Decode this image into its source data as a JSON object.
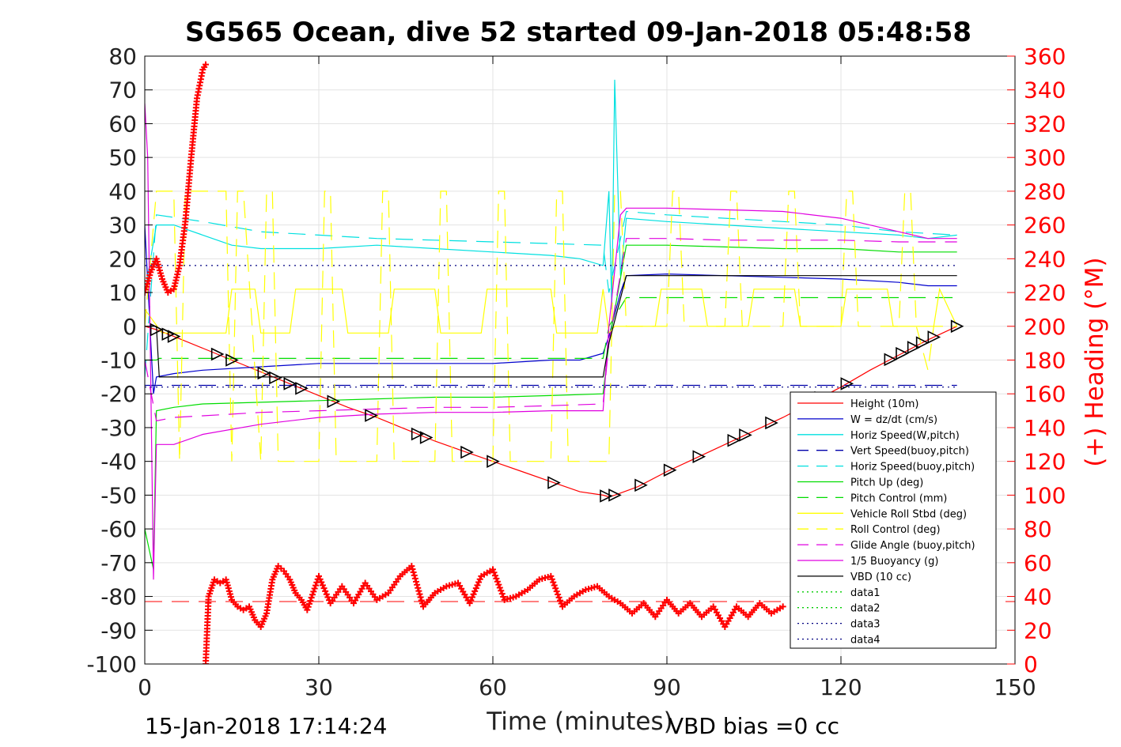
{
  "chart_data": {
    "type": "line",
    "title": "SG565 Ocean, dive 52 started 09-Jan-2018 05:48:58",
    "xlabel": "Time (minutes)",
    "ylabel_right": "(+) Heading (°M)",
    "xlim": [
      0,
      150
    ],
    "ylim": [
      -100,
      80
    ],
    "ylim_right": [
      0,
      360
    ],
    "xticks": [
      "0",
      "30",
      "60",
      "90",
      "120",
      "150"
    ],
    "yticks": [
      "80",
      "70",
      "60",
      "50",
      "40",
      "30",
      "20",
      "10",
      "0",
      "-10",
      "-20",
      "-30",
      "-40",
      "-50",
      "-60",
      "-70",
      "-80",
      "-90",
      "-100"
    ],
    "yticks_right": [
      "360",
      "340",
      "320",
      "300",
      "280",
      "260",
      "240",
      "220",
      "200",
      "180",
      "160",
      "140",
      "120",
      "100",
      "80",
      "60",
      "40",
      "20",
      "0"
    ],
    "grid": true,
    "legend_position": "bottom-right",
    "footer_left": "15-Jan-2018 17:14:24",
    "footer_right": "VBD bias =0 cc",
    "series": [
      {
        "name": "Height (10m)",
        "color": "#ff0000",
        "style": "solid",
        "x": [
          0,
          2,
          5,
          10,
          15,
          20,
          25,
          30,
          35,
          40,
          45,
          50,
          55,
          60,
          65,
          70,
          75,
          79,
          80,
          81,
          85,
          90,
          95,
          100,
          105,
          110,
          115,
          120,
          125,
          130,
          135,
          140
        ],
        "y": [
          0,
          -1,
          -3,
          -6.5,
          -10,
          -13.5,
          -17,
          -20.5,
          -24,
          -27,
          -30.5,
          -34,
          -37,
          -40,
          -43,
          -46,
          -49,
          -50,
          -50.5,
          -50,
          -47.5,
          -43,
          -39,
          -35,
          -31,
          -27,
          -22.5,
          -18,
          -13,
          -8.5,
          -4,
          0
        ]
      },
      {
        "name": "W = dz/dt (cm/s)",
        "color": "#0000cc",
        "style": "solid",
        "x": [
          0,
          1.5,
          2,
          5,
          10,
          20,
          30,
          40,
          50,
          60,
          70,
          75,
          79,
          80,
          82,
          83,
          90,
          100,
          110,
          120,
          130,
          135,
          140
        ],
        "y": [
          30,
          -20,
          -15,
          -14,
          -13,
          -12,
          -11,
          -11,
          -11,
          -11,
          -10,
          -10,
          -8,
          -3,
          10,
          15,
          15.5,
          15,
          14.5,
          14,
          13,
          12,
          12
        ]
      },
      {
        "name": "Horiz Speed(W,pitch)",
        "color": "#00e0e0",
        "style": "solid",
        "x": [
          0,
          2,
          5,
          10,
          15,
          20,
          30,
          40,
          50,
          60,
          70,
          75,
          79,
          80,
          80.5,
          81,
          82,
          83,
          90,
          100,
          110,
          120,
          130,
          135,
          140
        ],
        "y": [
          10,
          30,
          30,
          27,
          24,
          23,
          23,
          24,
          23,
          22,
          21,
          20,
          18,
          40,
          5,
          73,
          15,
          32,
          31,
          30,
          29,
          28,
          27,
          26,
          27
        ]
      },
      {
        "name": "Vert Speed(buoy,pitch)",
        "color": "#0000aa",
        "style": "dashed",
        "x": [
          0,
          140
        ],
        "y": [
          -17.5,
          -17.5
        ]
      },
      {
        "name": "Horiz Speed(buoy,pitch)",
        "color": "#00e0e0",
        "style": "dashed",
        "x": [
          0,
          2,
          10,
          20,
          30,
          40,
          50,
          60,
          70,
          79,
          80,
          83,
          90,
          100,
          110,
          120,
          130,
          140
        ],
        "y": [
          -15,
          33,
          31,
          28,
          27,
          26,
          25.5,
          25,
          24.5,
          24,
          10,
          34,
          33,
          32,
          31,
          30,
          28,
          27
        ]
      },
      {
        "name": "Pitch Up (deg)",
        "color": "#00dd00",
        "style": "solid",
        "x": [
          0,
          1.5,
          2,
          5,
          10,
          20,
          30,
          40,
          50,
          60,
          70,
          79,
          80,
          83,
          90,
          100,
          110,
          120,
          130,
          140
        ],
        "y": [
          -60,
          -72,
          -25,
          -24,
          -23,
          -22.5,
          -22,
          -21.5,
          -21,
          -21,
          -20.5,
          -20,
          -5,
          24,
          24,
          23.5,
          23,
          23,
          22,
          22
        ]
      },
      {
        "name": "Pitch Control (mm)",
        "color": "#00dd00",
        "style": "dashed",
        "x": [
          0,
          2,
          2.5,
          79,
          80,
          83,
          140
        ],
        "y": [
          -10,
          -10,
          -9.5,
          -9.5,
          0,
          8.5,
          8.5
        ]
      },
      {
        "name": "Vehicle Roll Stbd (deg)",
        "color": "#ffff00",
        "style": "solid",
        "x": [
          0,
          3,
          5,
          14,
          15,
          19,
          20,
          25,
          26,
          34,
          35,
          42,
          43,
          50,
          51,
          58,
          59,
          70,
          71,
          78,
          79,
          80,
          81,
          88,
          89,
          96,
          97,
          104,
          105,
          112,
          113,
          120,
          121,
          128,
          129,
          136,
          137,
          140
        ],
        "y": [
          5,
          -2,
          -2,
          -2,
          11,
          11,
          -2,
          -2,
          11,
          11,
          -2,
          -2,
          11,
          11,
          -2,
          -2,
          11,
          11,
          -2,
          -2,
          11,
          -2,
          0,
          0,
          11,
          11,
          0,
          0,
          11,
          11,
          0,
          0,
          11,
          11,
          0,
          0,
          11,
          0
        ]
      },
      {
        "name": "Roll Control (deg)",
        "color": "#ffff00",
        "style": "dashed",
        "x": [
          0,
          2,
          5,
          6,
          7,
          14,
          15,
          16,
          17,
          20,
          21,
          22,
          23,
          30,
          31,
          32,
          33,
          40,
          41,
          42,
          43,
          50,
          51,
          52,
          53,
          60,
          61,
          62,
          63,
          70,
          71,
          72,
          73,
          80,
          81,
          82,
          83,
          90,
          91,
          92,
          93,
          100,
          101,
          102,
          103,
          110,
          111,
          112,
          113,
          120,
          121,
          122,
          123,
          130,
          131,
          132,
          133,
          135,
          136,
          140
        ],
        "y": [
          0,
          40,
          40,
          -40,
          40,
          40,
          -40,
          40,
          40,
          -40,
          40,
          40,
          -40,
          -40,
          40,
          40,
          -40,
          -40,
          40,
          40,
          -40,
          -40,
          40,
          40,
          -40,
          -40,
          40,
          40,
          -40,
          -40,
          40,
          40,
          -40,
          -40,
          40,
          40,
          0,
          0,
          40,
          40,
          0,
          0,
          40,
          40,
          0,
          0,
          40,
          40,
          0,
          0,
          40,
          40,
          0,
          0,
          40,
          40,
          0,
          -13,
          0,
          0
        ]
      },
      {
        "name": "Glide Angle (buoy,pitch)",
        "color": "#e000e0",
        "style": "dashed",
        "x": [
          0,
          2,
          5,
          10,
          20,
          30,
          40,
          50,
          60,
          70,
          79,
          80,
          83,
          90,
          100,
          110,
          120,
          130,
          140
        ],
        "y": [
          -10,
          -28,
          -27,
          -26.5,
          -25.5,
          -25,
          -24.5,
          -24,
          -24,
          -23.5,
          -23,
          -5,
          26,
          26,
          25.5,
          25.5,
          25.5,
          25,
          25
        ]
      },
      {
        "name": "1/5 Buoyancy (g)",
        "color": "#e000e0",
        "style": "solid",
        "x": [
          0,
          0.5,
          1.5,
          2,
          5,
          10,
          20,
          30,
          40,
          50,
          60,
          70,
          79,
          80,
          82,
          83,
          90,
          100,
          110,
          120,
          130,
          135,
          140
        ],
        "y": [
          66,
          50,
          -75,
          -35,
          -35,
          -32,
          -29,
          -27,
          -26,
          -25.5,
          -25.5,
          -25,
          -25,
          0,
          33,
          35,
          35,
          34.5,
          34,
          32,
          28,
          26,
          26
        ]
      },
      {
        "name": "VBD (10 cc)",
        "color": "#000000",
        "style": "solid",
        "x": [
          0,
          2,
          2.5,
          5,
          10,
          20,
          30,
          40,
          50,
          60,
          70,
          79,
          80,
          83,
          90,
          100,
          110,
          120,
          130,
          140
        ],
        "y": [
          0,
          0,
          -15,
          -15,
          -15,
          -15,
          -15,
          -15,
          -15,
          -15,
          -15,
          -15,
          -5,
          15,
          15,
          15,
          15,
          15,
          15,
          15
        ]
      },
      {
        "name": "data1",
        "color": "#00cc00",
        "style": "dotted",
        "x": [],
        "y": []
      },
      {
        "name": "data2",
        "color": "#00cc00",
        "style": "dotted",
        "x": [],
        "y": []
      },
      {
        "name": "data3",
        "color": "#000080",
        "style": "dotted",
        "x": [
          0,
          140
        ],
        "y": [
          18,
          18
        ]
      },
      {
        "name": "data4",
        "color": "#000080",
        "style": "dotted",
        "x": [
          0,
          140
        ],
        "y": [
          -18,
          -18
        ]
      }
    ],
    "heading_reference": {
      "color": "#ff0000",
      "style": "dashed",
      "y_right": 37
    },
    "heading_series": {
      "color": "#ff0000",
      "marker": "+",
      "x": [
        0,
        1,
        2,
        3,
        4,
        5,
        6,
        7,
        8,
        9,
        10,
        10.5,
        10.5,
        11,
        12,
        13,
        14,
        15,
        16,
        17,
        18,
        19,
        20,
        21,
        22,
        23,
        24,
        25,
        26,
        27,
        28,
        30,
        32,
        34,
        36,
        38,
        40,
        42,
        44,
        46,
        48,
        50,
        52,
        54,
        56,
        58,
        60,
        62,
        64,
        66,
        68,
        70,
        72,
        74,
        76,
        78,
        80,
        82,
        84,
        86,
        88,
        90,
        92,
        94,
        96,
        98,
        100,
        102,
        104,
        106,
        108,
        110
      ],
      "y": [
        220,
        232,
        240,
        228,
        220,
        222,
        236,
        262,
        300,
        335,
        352,
        355,
        0,
        40,
        50,
        48,
        50,
        38,
        34,
        32,
        34,
        26,
        22,
        30,
        50,
        58,
        55,
        50,
        42,
        38,
        32,
        52,
        36,
        46,
        36,
        48,
        38,
        42,
        52,
        58,
        34,
        42,
        46,
        48,
        36,
        52,
        56,
        38,
        40,
        44,
        50,
        52,
        34,
        40,
        44,
        46,
        40,
        36,
        30,
        36,
        28,
        38,
        30,
        36,
        28,
        34,
        22,
        34,
        28,
        36,
        30,
        34
      ]
    }
  }
}
